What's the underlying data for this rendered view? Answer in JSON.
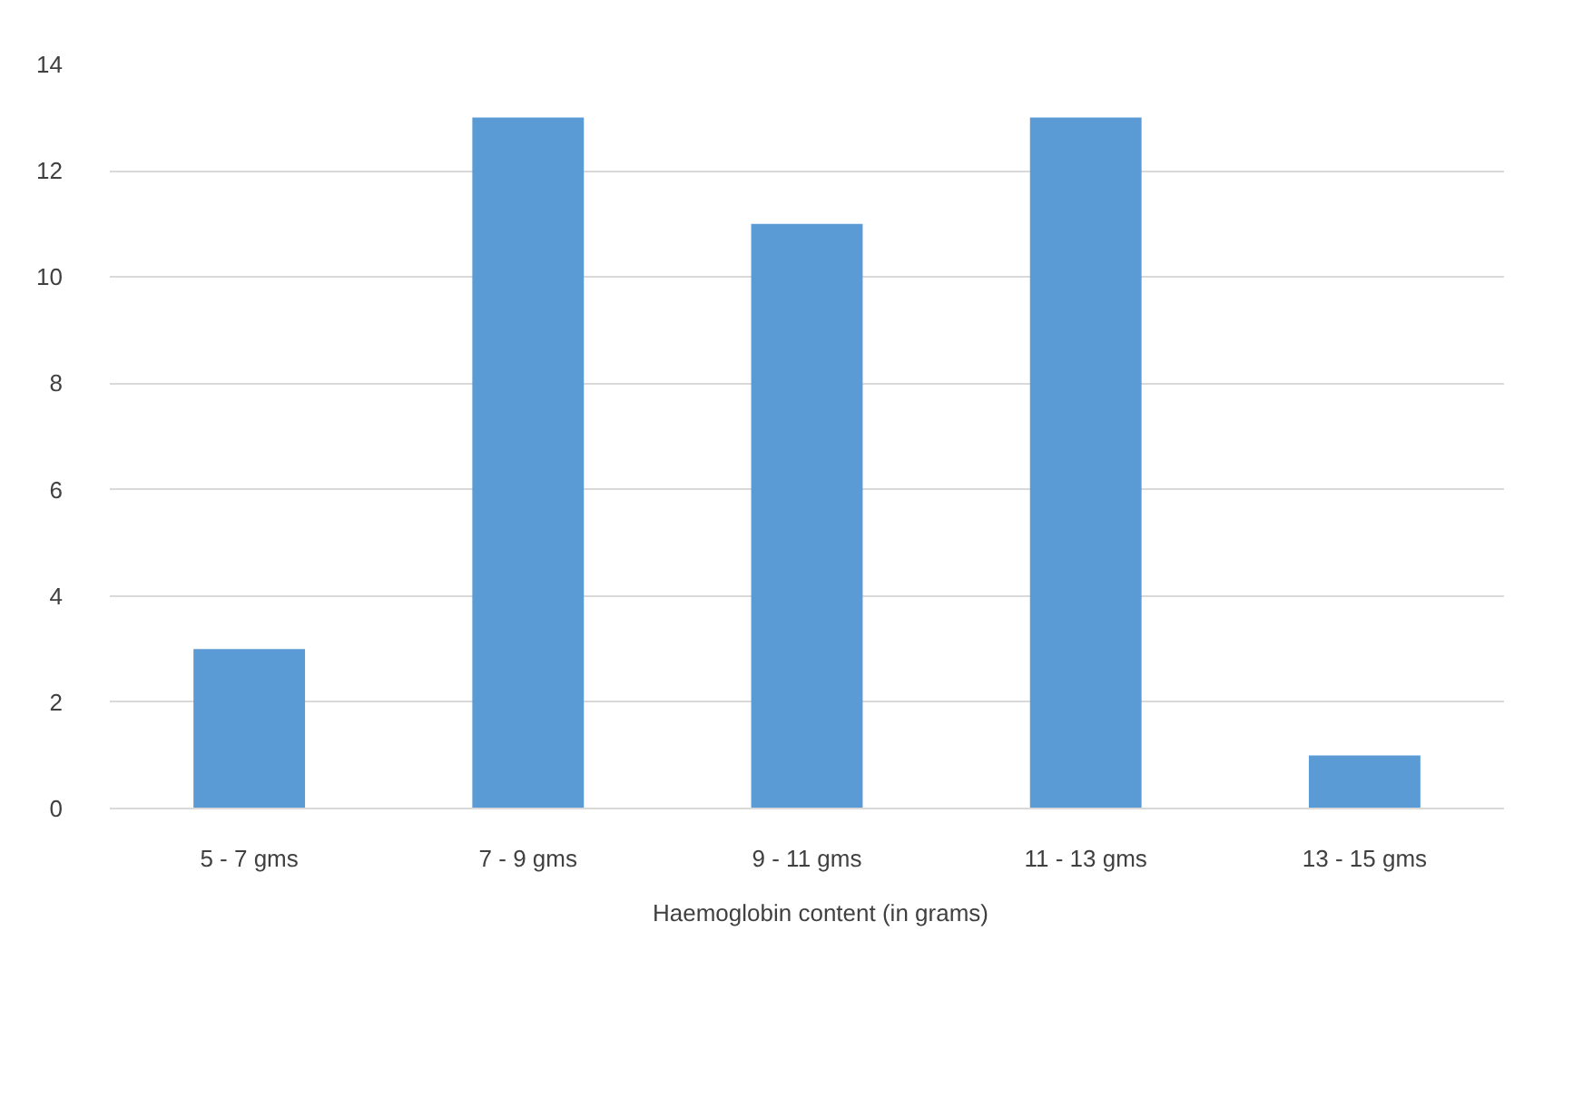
{
  "chart_data": {
    "type": "bar",
    "categories": [
      "5 - 7 gms",
      "7 - 9 gms",
      "9 - 11 gms",
      "11 - 13 gms",
      "13 - 15 gms"
    ],
    "series": [
      {
        "name": "Haemoglobin content (in grams)",
        "color": "#5b9bd5",
        "values": [
          3,
          13,
          11,
          13,
          1
        ]
      }
    ],
    "ylim": [
      0,
      14
    ],
    "yticks": [
      0,
      2,
      4,
      6,
      8,
      10,
      12,
      14
    ],
    "grid": "y",
    "legend": "bottom"
  }
}
